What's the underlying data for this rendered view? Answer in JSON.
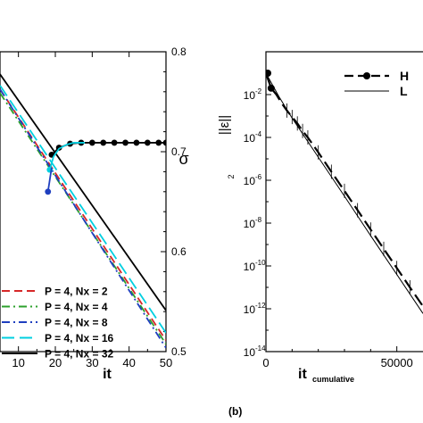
{
  "chart_data": [
    {
      "type": "line",
      "panel_label": "",
      "xlabel": "it",
      "ylabel_right": "σ",
      "x_ticks": [
        "10",
        "20",
        "30",
        "40",
        "50"
      ],
      "y_right_ticks": [
        "0.5",
        "0.6",
        "0.7",
        "0.8"
      ],
      "xlim": [
        5,
        50
      ],
      "ylim_right": [
        0.5,
        0.8
      ],
      "log_left_axis_untitled": true,
      "series": [
        {
          "name": "P = 4, Nx = 2",
          "color": "#d62728",
          "dash": "dash",
          "x": [
            5,
            50
          ],
          "y": [
            -2.0,
            -8.7
          ]
        },
        {
          "name": "P = 4, Nx = 4",
          "color": "#2ca02c",
          "dash": "dashdot",
          "x": [
            5,
            50
          ],
          "y": [
            -2.1,
            -8.8
          ]
        },
        {
          "name": "P = 4, Nx = 8",
          "color": "#1f3fbf",
          "dash": "dashdot",
          "x": [
            5,
            50
          ],
          "y": [
            -2.0,
            -8.9
          ]
        },
        {
          "name": "P = 4, Nx = 16",
          "color": "#00cfe0",
          "dash": "longdash",
          "x": [
            5,
            50
          ],
          "y": [
            -1.9,
            -8.5
          ]
        },
        {
          "name": "P = 4, Nx = 32",
          "color": "#000000",
          "dash": "solid",
          "x": [
            5,
            50
          ],
          "y": [
            -1.6,
            -7.9
          ]
        }
      ],
      "sigma_series": [
        {
          "color": "#000000",
          "marker": "circle",
          "x": [
            19,
            21,
            24,
            27,
            30,
            33,
            36,
            39,
            42,
            45,
            48,
            50
          ],
          "y": [
            0.697,
            0.704,
            0.708,
            0.709,
            0.709,
            0.709,
            0.709,
            0.709,
            0.709,
            0.709,
            0.709,
            0.709
          ]
        },
        {
          "color": "#00cfe0",
          "marker": "circle",
          "x": [
            18.5,
            19.5,
            21,
            23,
            25,
            28
          ],
          "y": [
            0.682,
            0.695,
            0.703,
            0.707,
            0.709,
            0.709
          ]
        },
        {
          "color": "#1f3fbf",
          "marker": "circle",
          "x": [
            18,
            18.5,
            19
          ],
          "y": [
            0.66,
            0.672,
            0.684
          ]
        }
      ]
    },
    {
      "type": "line",
      "panel_label": "(b)",
      "xlabel": "it",
      "xlabel_subscript": "cumulative",
      "ylabel": "||ε||",
      "ylabel_subscript": "2",
      "y_scale": "log",
      "xlim": [
        0,
        60000
      ],
      "ylim": [
        1e-14,
        1
      ],
      "x_ticks": [
        "0",
        "50000"
      ],
      "y_ticks": [
        "10",
        "10",
        "10",
        "10",
        "10",
        "10",
        "10"
      ],
      "y_tick_exponents": [
        "-2",
        "-4",
        "-6",
        "-8",
        "-10",
        "-12",
        "-14"
      ],
      "series": [
        {
          "name": "H",
          "color": "#000000",
          "dash": "longdash",
          "marker": "circle",
          "x": [
            0,
            2000,
            4000,
            6000,
            8000,
            10000,
            12000,
            14000,
            16000,
            20000,
            25000,
            30000,
            35000,
            40000,
            45000,
            50000,
            55000,
            60000
          ],
          "y": [
            0.1,
            0.02,
            0.01,
            0.004,
            0.0018,
            0.0009,
            0.00045,
            0.0002,
            0.0001,
            2e-05,
            2.5e-06,
            3.2e-07,
            4e-08,
            5e-09,
            6.3e-10,
            8e-11,
            1e-11,
            1.3e-12
          ]
        },
        {
          "name": "L",
          "color": "#000000",
          "dash": "solid",
          "x": [
            0,
            5000,
            10000,
            20000,
            30000,
            40000,
            50000,
            60000
          ],
          "y": [
            0.1,
            0.008,
            0.0008,
            1.2e-05,
            1.8e-07,
            2.6e-09,
            4e-11,
            6e-13
          ]
        }
      ]
    }
  ]
}
